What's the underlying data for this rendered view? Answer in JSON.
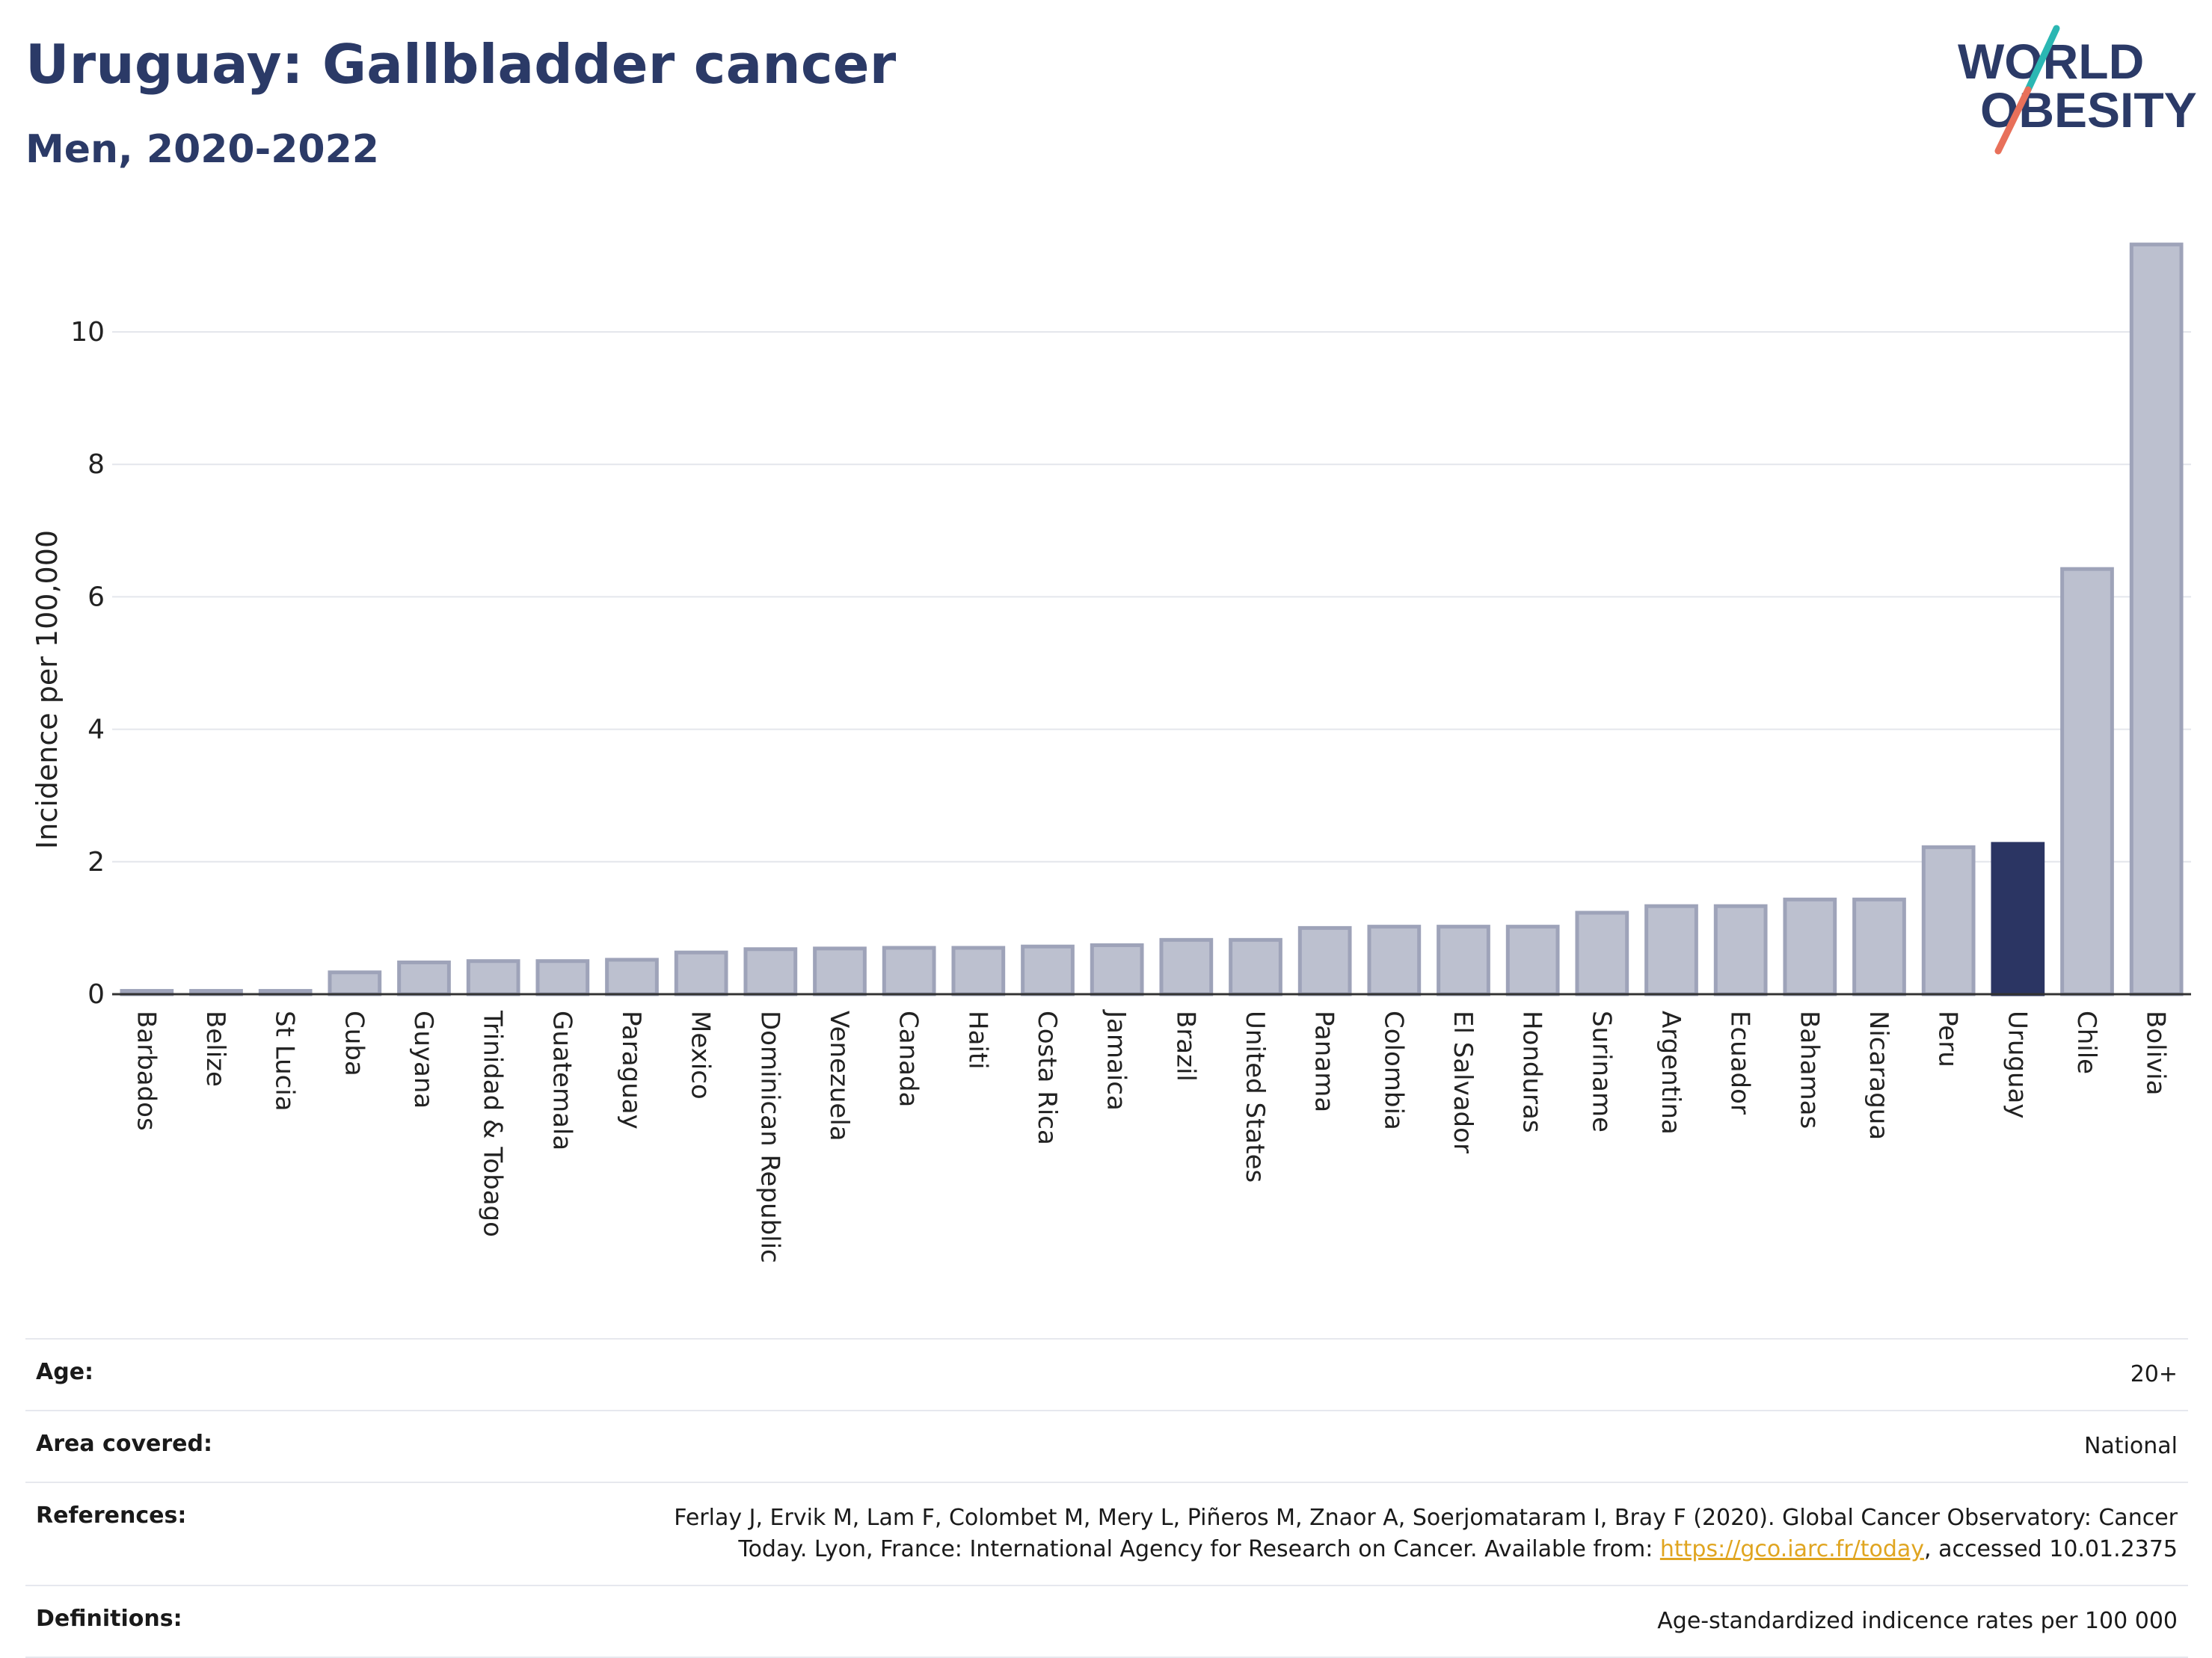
{
  "header": {
    "title": "Uruguay: Gallbladder cancer",
    "subtitle": "Men, 2020-2022"
  },
  "logo": {
    "line1": "WORLD",
    "line2": "OBESITY",
    "text_color": "#2b3a67",
    "slash_color_top": "#2bb7b3",
    "slash_color_bottom": "#e8705a"
  },
  "chart_data": {
    "type": "bar",
    "ylabel": "Incidence per 100,000",
    "xlabel": "",
    "ylim": [
      0,
      11.5
    ],
    "yticks": [
      0,
      2,
      4,
      6,
      8,
      10
    ],
    "grid": true,
    "highlight": "Uruguay",
    "colors": {
      "bar": "#bcc0cf",
      "bar_edge": "#9ea3b9",
      "highlight": "#2b3563"
    },
    "categories": [
      "Barbados",
      "Belize",
      "St Lucia",
      "Cuba",
      "Guyana",
      "Trinidad & Tobago",
      "Guatemala",
      "Paraguay",
      "Mexico",
      "Dominican Republic",
      "Venezuela",
      "Canada",
      "Haiti",
      "Costa Rica",
      "Jamaica",
      "Brazil",
      "United States",
      "Panama",
      "Colombia",
      "El Salvador",
      "Honduras",
      "Suriname",
      "Argentina",
      "Ecuador",
      "Bahamas",
      "Nicaragua",
      "Peru",
      "Uruguay",
      "Chile",
      "Bolivia"
    ],
    "values": [
      0.05,
      0.05,
      0.05,
      0.33,
      0.48,
      0.5,
      0.5,
      0.52,
      0.63,
      0.68,
      0.69,
      0.7,
      0.7,
      0.72,
      0.74,
      0.82,
      0.82,
      1.0,
      1.02,
      1.02,
      1.02,
      1.23,
      1.33,
      1.33,
      1.43,
      1.43,
      2.22,
      2.27,
      6.42,
      11.32
    ]
  },
  "info": {
    "rows": [
      {
        "label": "Age:",
        "value": "20+"
      },
      {
        "label": "Area covered:",
        "value": "National"
      },
      {
        "label": "References:",
        "value_before": "Ferlay J, Ervik M, Lam F, Colombet M, Mery L, Piñeros M, Znaor A, Soerjomataram I, Bray F (2020). Global Cancer Observatory: Cancer Today. Lyon, France: International Agency for Research on Cancer. Available from: ",
        "link": "https://gco.iarc.fr/today",
        "value_after": ", accessed 10.01.2375"
      },
      {
        "label": "Definitions:",
        "value": "Age-standardized indicence rates per 100 000"
      }
    ]
  }
}
